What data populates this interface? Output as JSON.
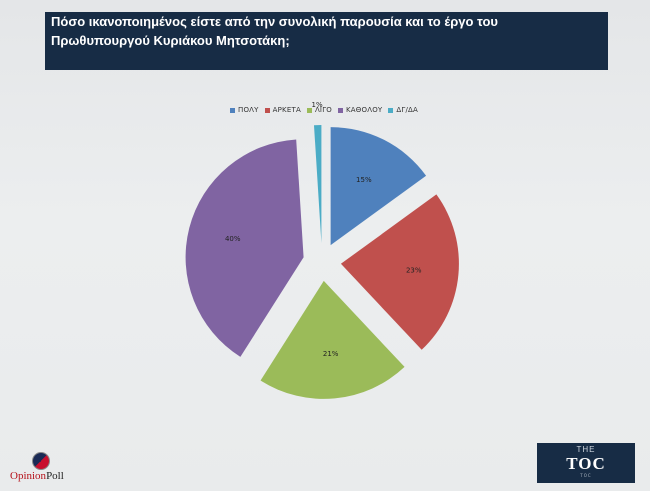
{
  "header": {
    "line1": "Πόσο ικανοποιημένος είστε από την συνολική παρουσία και το έργο του",
    "line2": "Πρωθυπουργού Κυριάκου Μητσοτάκη;"
  },
  "chart_data": {
    "type": "pie",
    "title": "Πόσο ικανοποιημένος είστε από την συνολική παρουσία και το έργο του Πρωθυπουργού Κυριάκου Μητσοτάκη;",
    "legend_position": "top",
    "slices": [
      {
        "label": "ΠΟΛΥ",
        "value": 15,
        "display": "15%",
        "color": "#4f81bd"
      },
      {
        "label": "ΑΡΚΕΤΑ",
        "value": 23,
        "display": "23%",
        "color": "#c0504d"
      },
      {
        "label": "ΛΙΓΟ",
        "value": 21,
        "display": "21%",
        "color": "#9bbb59"
      },
      {
        "label": "ΚΑΘΟΛΟΥ",
        "value": 40,
        "display": "40%",
        "color": "#8064a2"
      },
      {
        "label": "ΔΓ/ΔΑ",
        "value": 1,
        "display": "1%",
        "color": "#4bacc6"
      }
    ]
  },
  "branding": {
    "left_logo_red": "Opinion",
    "left_logo_dark": "Poll",
    "right_logo_top": "THE",
    "right_logo_main": "TOC",
    "right_logo_sub": "TOC"
  }
}
